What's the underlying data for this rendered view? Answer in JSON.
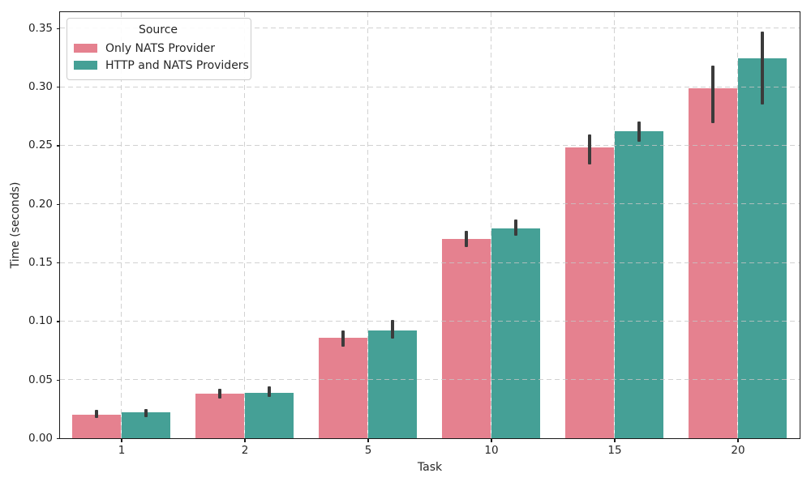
{
  "window": {
    "background": "#ffffff"
  },
  "chart_data": {
    "type": "bar",
    "title": "",
    "xlabel": "Task",
    "ylabel": "Time (seconds)",
    "categories": [
      "1",
      "2",
      "5",
      "10",
      "15",
      "20"
    ],
    "series": [
      {
        "name": "Only NATS Provider",
        "color": "#e5818f",
        "values": [
          0.02,
          0.038,
          0.086,
          0.17,
          0.248,
          0.299
        ],
        "error_low": [
          0.017,
          0.034,
          0.078,
          0.163,
          0.234,
          0.269
        ],
        "error_high": [
          0.024,
          0.042,
          0.092,
          0.177,
          0.259,
          0.318
        ]
      },
      {
        "name": "HTTP and NATS Providers",
        "color": "#45a096",
        "values": [
          0.022,
          0.039,
          0.092,
          0.179,
          0.262,
          0.324
        ],
        "error_low": [
          0.018,
          0.035,
          0.085,
          0.173,
          0.253,
          0.285
        ],
        "error_high": [
          0.025,
          0.044,
          0.101,
          0.187,
          0.27,
          0.347
        ]
      }
    ],
    "ylim": [
      0,
      0.364
    ],
    "yticks": [
      0,
      0.05,
      0.1,
      0.15,
      0.2,
      0.25,
      0.3,
      0.35
    ],
    "ytick_labels": [
      "0.00",
      "0.05",
      "0.10",
      "0.15",
      "0.20",
      "0.25",
      "0.30",
      "0.35"
    ],
    "grid": true,
    "grid_style": "dashed",
    "legend": {
      "title": "Source",
      "position": "upper-left"
    }
  },
  "style": {
    "errorbar_color": "#3b3b3b",
    "grid_color": "rgba(198,198,198,0.8)",
    "spine_color": "#1a1a1a",
    "text_color": "#262626",
    "legend_border_color": "#cccccc",
    "legend_background": "rgba(255,255,255,0.9)"
  }
}
